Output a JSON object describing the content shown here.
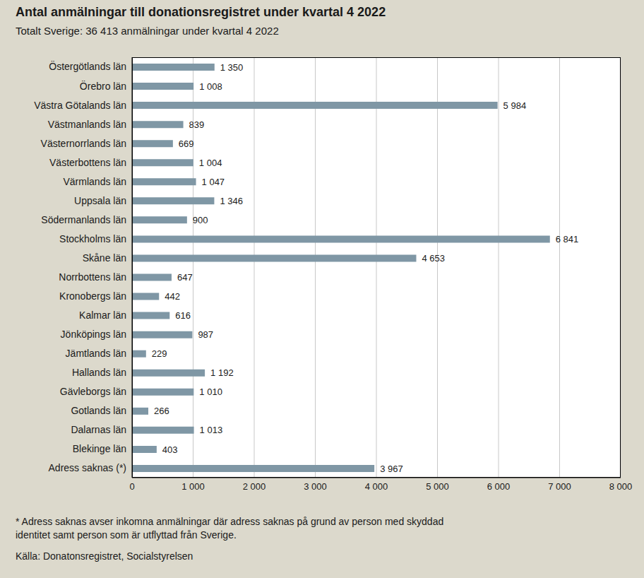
{
  "chart_data": {
    "type": "bar",
    "title": "Antal anmälningar till donationsregistret under kvartal 4 2022",
    "subtitle": "Totalt Sverige: 36 413 anmälningar under kvartal 4 2022",
    "footnote": "* Adress saknas avser inkomna anmälningar där adress saknas på grund av person med skyddad identitet samt person som är utflyttad från Sverige.",
    "source": "Källa: Donatonsregistret, Socialstyrelsen",
    "orientation": "horizontal",
    "grid": true,
    "data_labels": true,
    "color": "#7f97a5",
    "categories": [
      "Östergötlands län",
      "Örebro län",
      "Västra Götalands län",
      "Västmanlands län",
      "Västernorrlands län",
      "Västerbottens län",
      "Värmlands län",
      "Uppsala län",
      "Södermanlands län",
      "Stockholms län",
      "Skåne län",
      "Norrbottens län",
      "Kronobergs län",
      "Kalmar län",
      "Jönköpings län",
      "Jämtlands län",
      "Hallands län",
      "Gävleborgs län",
      "Gotlands län",
      "Dalarnas län",
      "Blekinge län",
      "Adress saknas (*)"
    ],
    "values": [
      1350,
      1008,
      5984,
      839,
      669,
      1004,
      1047,
      1346,
      900,
      6841,
      4653,
      647,
      442,
      616,
      987,
      229,
      1192,
      1010,
      266,
      1013,
      403,
      3967
    ],
    "value_labels": [
      "1 350",
      "1 008",
      "5 984",
      "839",
      "669",
      "1 004",
      "1 047",
      "1 346",
      "900",
      "6 841",
      "4 653",
      "647",
      "442",
      "616",
      "987",
      "229",
      "1 192",
      "1 010",
      "266",
      "1 013",
      "403",
      "3 967"
    ],
    "xlim": [
      0,
      8000
    ],
    "xticks": [
      0,
      {
        "value": 1000,
        "label": "1 000"
      },
      {
        "value": 2000,
        "label": "2 000"
      },
      {
        "value": 3000,
        "label": "3 000"
      },
      {
        "value": 4000,
        "label": "4 000"
      },
      {
        "value": 5000,
        "label": "5 000"
      },
      {
        "value": 6000,
        "label": "6 000"
      },
      {
        "value": 7000,
        "label": "7 000"
      },
      {
        "value": 8000,
        "label": "8 000"
      }
    ]
  }
}
